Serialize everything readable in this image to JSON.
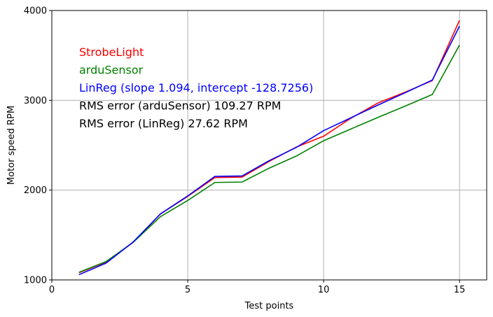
{
  "chart_data": {
    "type": "line",
    "xlabel": "Test points",
    "ylabel": "Motor speed RPM",
    "xlim": [
      0,
      16
    ],
    "ylim": [
      1000,
      4000
    ],
    "xticks": [
      0,
      5,
      10,
      15
    ],
    "yticks": [
      1000,
      2000,
      3000,
      4000
    ],
    "grid": true,
    "x": [
      1,
      2,
      3,
      4,
      5,
      6,
      7,
      8,
      9,
      10,
      11,
      12,
      13,
      14,
      15
    ],
    "series": [
      {
        "name": "StrobeLight",
        "color": "#ff0000",
        "values": [
          1080,
          1200,
          1420,
          1735,
          1930,
          2140,
          2145,
          2320,
          2480,
          2600,
          2800,
          2970,
          3090,
          3220,
          3890
        ]
      },
      {
        "name": "arduSensor",
        "color": "#008000",
        "values": [
          1085,
          1205,
          1420,
          1705,
          1885,
          2085,
          2090,
          2245,
          2380,
          2550,
          2680,
          2810,
          2935,
          3065,
          3615
        ]
      },
      {
        "name": "LinReg",
        "color": "#0000ff",
        "values": [
          1058,
          1188,
          1424,
          1736,
          1935,
          2153,
          2158,
          2328,
          2476,
          2662,
          2805,
          2947,
          3084,
          3226,
          3826
        ]
      }
    ],
    "annotations": [
      {
        "text": "StrobeLight",
        "color": "#ff0000"
      },
      {
        "text": "arduSensor",
        "color": "#008000"
      },
      {
        "text": "LinReg (slope 1.094, intercept -128.7256)",
        "color": "#0000ff"
      },
      {
        "text": "RMS error (arduSensor) 109.27 RPM",
        "color": "#000000"
      },
      {
        "text": "RMS error (LinReg) 27.62 RPM",
        "color": "#000000"
      }
    ]
  }
}
